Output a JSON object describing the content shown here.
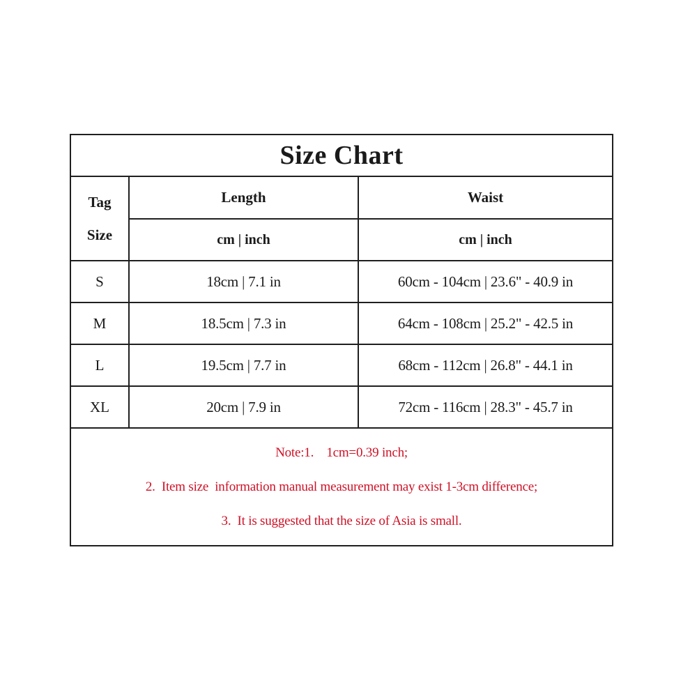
{
  "title": "Size Chart",
  "colors": {
    "note_red": "#ce1126",
    "border_black": "#1f1f1f",
    "background": "#ffffff"
  },
  "table": {
    "corner_header": {
      "line1": "Tag",
      "line2": "Size"
    },
    "columns": [
      {
        "label": "Length",
        "sub": "cm | inch"
      },
      {
        "label": "Waist",
        "sub": "cm | inch"
      }
    ],
    "rows": [
      {
        "size": "S",
        "length": "18cm | 7.1 in",
        "waist": "60cm - 104cm | 23.6\" - 40.9 in"
      },
      {
        "size": "M",
        "length": "18.5cm | 7.3 in",
        "waist": "64cm - 108cm | 25.2\" - 42.5 in"
      },
      {
        "size": "L",
        "length": "19.5cm | 7.7 in",
        "waist": "68cm - 112cm | 26.8\" - 44.1 in"
      },
      {
        "size": "XL",
        "length": "20cm | 7.9 in",
        "waist": "72cm - 116cm | 28.3\" - 45.7 in"
      }
    ]
  },
  "notes": [
    "Note:1.    1cm=0.39 inch;",
    "2.  Item size  information manual measurement may exist 1-3cm difference;",
    "3.  It is suggested that the size of Asia is small."
  ],
  "chart_data": {
    "type": "table",
    "title": "Size Chart",
    "columns": [
      "Tag Size",
      "Length (cm | inch)",
      "Waist (cm | inch)"
    ],
    "rows": [
      [
        "S",
        "18cm | 7.1 in",
        "60cm - 104cm | 23.6\" - 40.9 in"
      ],
      [
        "M",
        "18.5cm | 7.3 in",
        "64cm - 108cm | 25.2\" - 42.5 in"
      ],
      [
        "L",
        "19.5cm | 7.7 in",
        "68cm - 112cm | 26.8\" - 44.1 in"
      ],
      [
        "XL",
        "20cm | 7.9 in",
        "72cm - 116cm | 28.3\" - 45.7 in"
      ]
    ],
    "notes": [
      "Note:1. 1cm=0.39 inch;",
      "2. Item size information manual measurement may exist 1-3cm difference;",
      "3. It is suggested that the size of Asia is small."
    ]
  }
}
